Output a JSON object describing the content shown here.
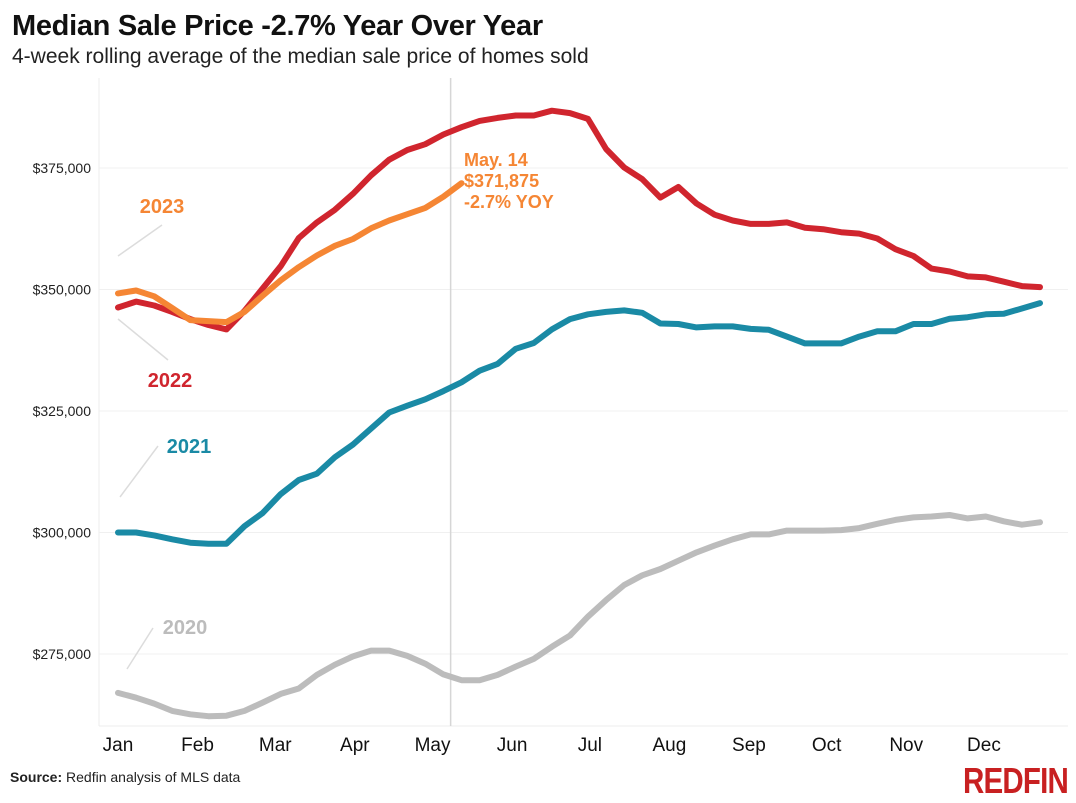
{
  "chart_data": {
    "type": "line",
    "title": "Median Sale Price -2.7% Year Over Year",
    "subtitle": "4-week rolling average of the median sale price of homes sold",
    "xlabel": "",
    "ylabel": "",
    "ylim": [
      260000,
      392000
    ],
    "yticks": [
      275000,
      300000,
      325000,
      350000,
      375000
    ],
    "ytick_labels": [
      "$275,000",
      "$300,000",
      "$325,000",
      "$350,000",
      "$375,000"
    ],
    "x_unit": "week of year",
    "xlim": [
      1,
      52
    ],
    "xticks": [
      1,
      5.4,
      9.7,
      14.1,
      18.4,
      22.8,
      27.1,
      31.5,
      35.9,
      40.2,
      44.6,
      48.9
    ],
    "xtick_labels": [
      "Jan",
      "Feb",
      "Mar",
      "Apr",
      "May",
      "Jun",
      "Jul",
      "Aug",
      "Sep",
      "Oct",
      "Nov",
      "Dec"
    ],
    "grid": true,
    "reference_line_week": 19.4,
    "series": [
      {
        "name": "2020",
        "color": "#bcbcbc",
        "values": [
          267000,
          266000,
          264800,
          263300,
          262600,
          262200,
          262300,
          263300,
          265000,
          266800,
          267900,
          270700,
          272800,
          274500,
          275700,
          275700,
          274600,
          273000,
          270800,
          269600,
          269600,
          270700,
          272400,
          274000,
          276500,
          278800,
          282700,
          286100,
          289200,
          291200,
          292500,
          294200,
          295900,
          297300,
          298600,
          299600,
          299600,
          300400,
          300400,
          300400,
          300500,
          300900,
          301800,
          302600,
          303100,
          303300,
          303600,
          302900,
          303300,
          302300,
          301600,
          302100
        ]
      },
      {
        "name": "2021",
        "color": "#1a8aa5",
        "values": [
          300000,
          300000,
          299400,
          298600,
          297900,
          297700,
          297700,
          301300,
          304000,
          307900,
          310800,
          312100,
          315500,
          318100,
          321400,
          324700,
          326100,
          327400,
          329100,
          330900,
          333300,
          334700,
          337800,
          339000,
          341800,
          343900,
          344900,
          345400,
          345700,
          345200,
          343000,
          342900,
          342200,
          342400,
          342400,
          341900,
          341700,
          340300,
          338900,
          338900,
          338900,
          340300,
          341400,
          341400,
          342900,
          342900,
          344000,
          344300,
          344900,
          345000,
          346100,
          347200
        ]
      },
      {
        "name": "2022",
        "color": "#d0252e",
        "values": [
          346300,
          347500,
          346700,
          345400,
          343900,
          342700,
          341800,
          345600,
          350200,
          354800,
          360600,
          363800,
          366400,
          369700,
          373500,
          376700,
          378700,
          379900,
          381900,
          383400,
          384700,
          385300,
          385800,
          385800,
          386800,
          386300,
          385100,
          378900,
          375100,
          372700,
          368900,
          371100,
          367700,
          365400,
          364200,
          363500,
          363500,
          363800,
          362700,
          362400,
          361800,
          361500,
          360500,
          358300,
          356900,
          354300,
          353700,
          352700,
          352500,
          351600,
          350700,
          350500
        ]
      },
      {
        "name": "2023",
        "color": "#f58634",
        "values": [
          349200,
          349800,
          348600,
          346200,
          343700,
          343500,
          343300,
          345400,
          348700,
          351900,
          354600,
          357000,
          359000,
          360400,
          362600,
          364200,
          365500,
          366800,
          369100,
          371875
        ]
      }
    ],
    "series_labels": {
      "2023": "2023",
      "2022": "2022",
      "2021": "2021",
      "2020": "2020"
    },
    "annotation": {
      "date": "May. 14",
      "value": "$371,875",
      "change": "-2.7% YOY",
      "color": "#f58634"
    }
  },
  "footer": {
    "source_label": "Source:",
    "source_text": " Redfin analysis of MLS data",
    "logo": "REDFIN"
  }
}
